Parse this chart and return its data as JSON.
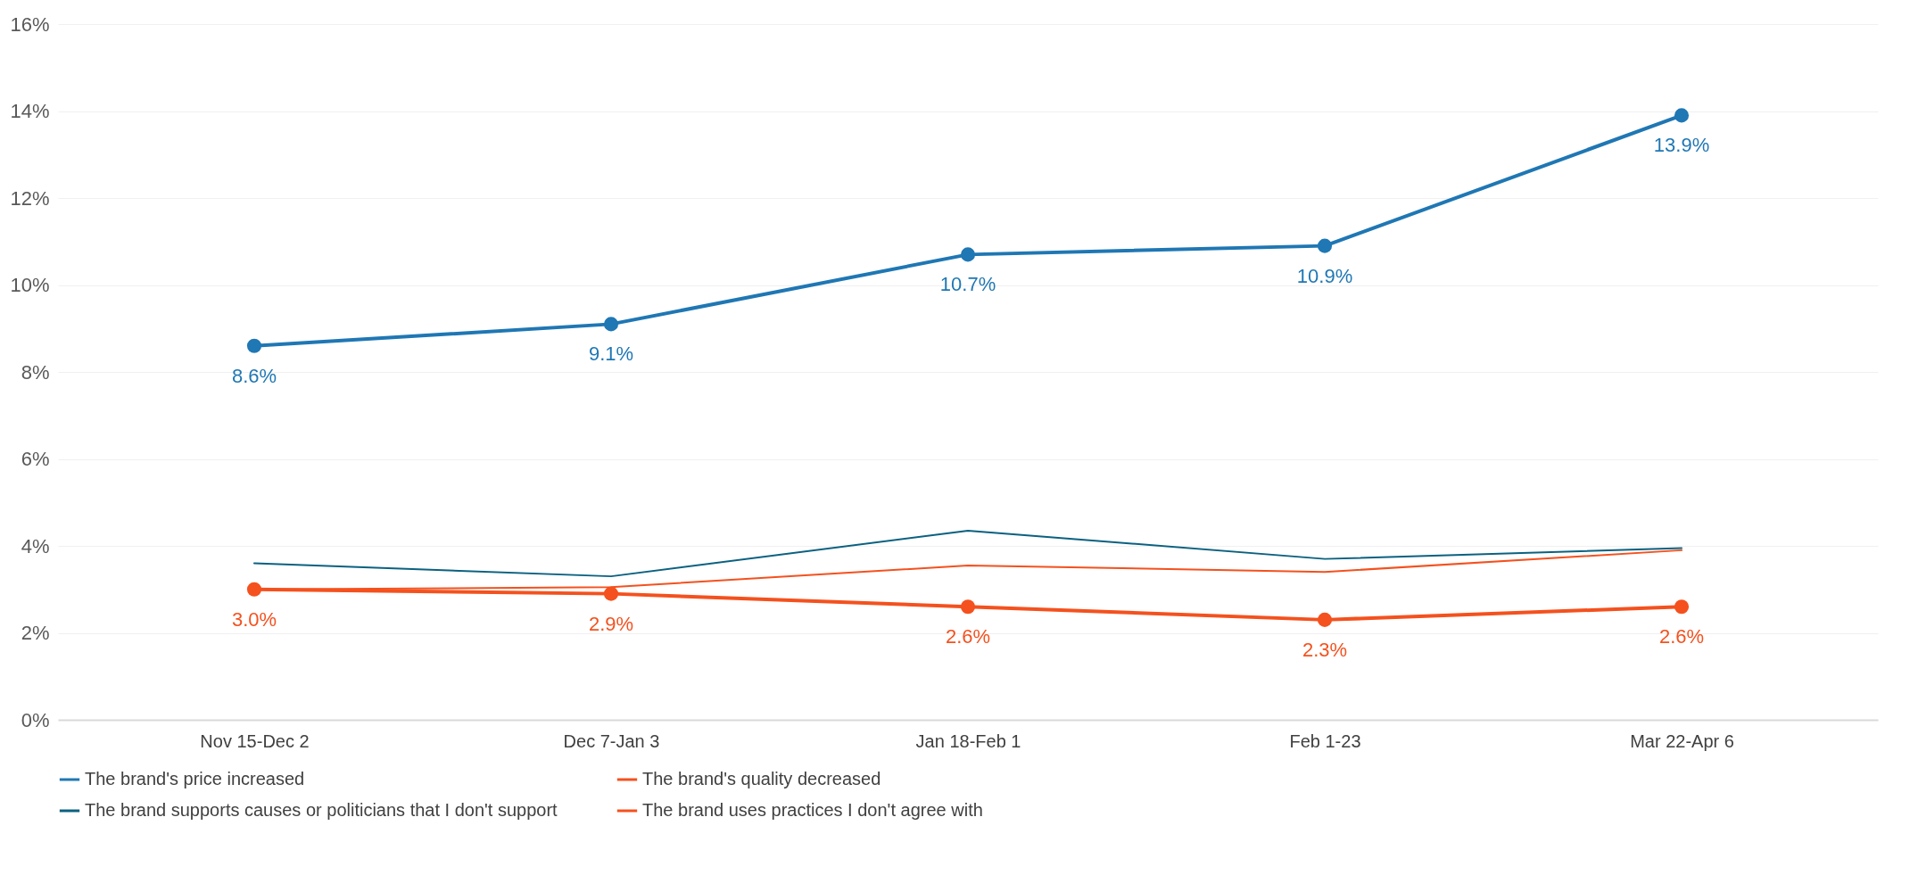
{
  "chart_data": {
    "type": "line",
    "categories": [
      "Nov 15-Dec 2",
      "Dec 7-Jan 3",
      "Jan 18-Feb 1",
      "Feb 1-23",
      "Mar 22-Apr 6"
    ],
    "series": [
      {
        "name": "The brand's price increased",
        "color": "#1f77b4",
        "marker": "circle",
        "values": [
          8.6,
          9.1,
          10.7,
          10.9,
          13.9
        ],
        "value_labels": [
          "8.6%",
          "9.1%",
          "10.7%",
          "10.9%",
          "13.9%"
        ]
      },
      {
        "name": "The brand's quality decreased",
        "color": "#f4511e",
        "marker": "none",
        "values": [
          3.0,
          3.05,
          3.55,
          3.4,
          3.9
        ]
      },
      {
        "name": "The brand supports causes or politicians that I don't support",
        "color": "#0b6180",
        "marker": "none",
        "values": [
          3.6,
          3.3,
          4.35,
          3.7,
          3.95
        ]
      },
      {
        "name": "The brand uses practices I don't agree with",
        "color": "#f4511e",
        "marker": "circle",
        "values": [
          3.0,
          2.9,
          2.6,
          2.3,
          2.6
        ],
        "value_labels": [
          "3.0%",
          "2.9%",
          "2.6%",
          "2.3%",
          "2.6%"
        ]
      }
    ],
    "ylim": [
      0,
      16
    ],
    "yticks": [
      {
        "value": 0,
        "label": "0%"
      },
      {
        "value": 2,
        "label": "2%"
      },
      {
        "value": 4,
        "label": "4%"
      },
      {
        "value": 6,
        "label": "6%"
      },
      {
        "value": 8,
        "label": "8%"
      },
      {
        "value": 10,
        "label": "10%"
      },
      {
        "value": 12,
        "label": "12%"
      },
      {
        "value": 14,
        "label": "14%"
      },
      {
        "value": 16,
        "label": "16%"
      }
    ],
    "grid": "y",
    "legend": "bottom"
  }
}
